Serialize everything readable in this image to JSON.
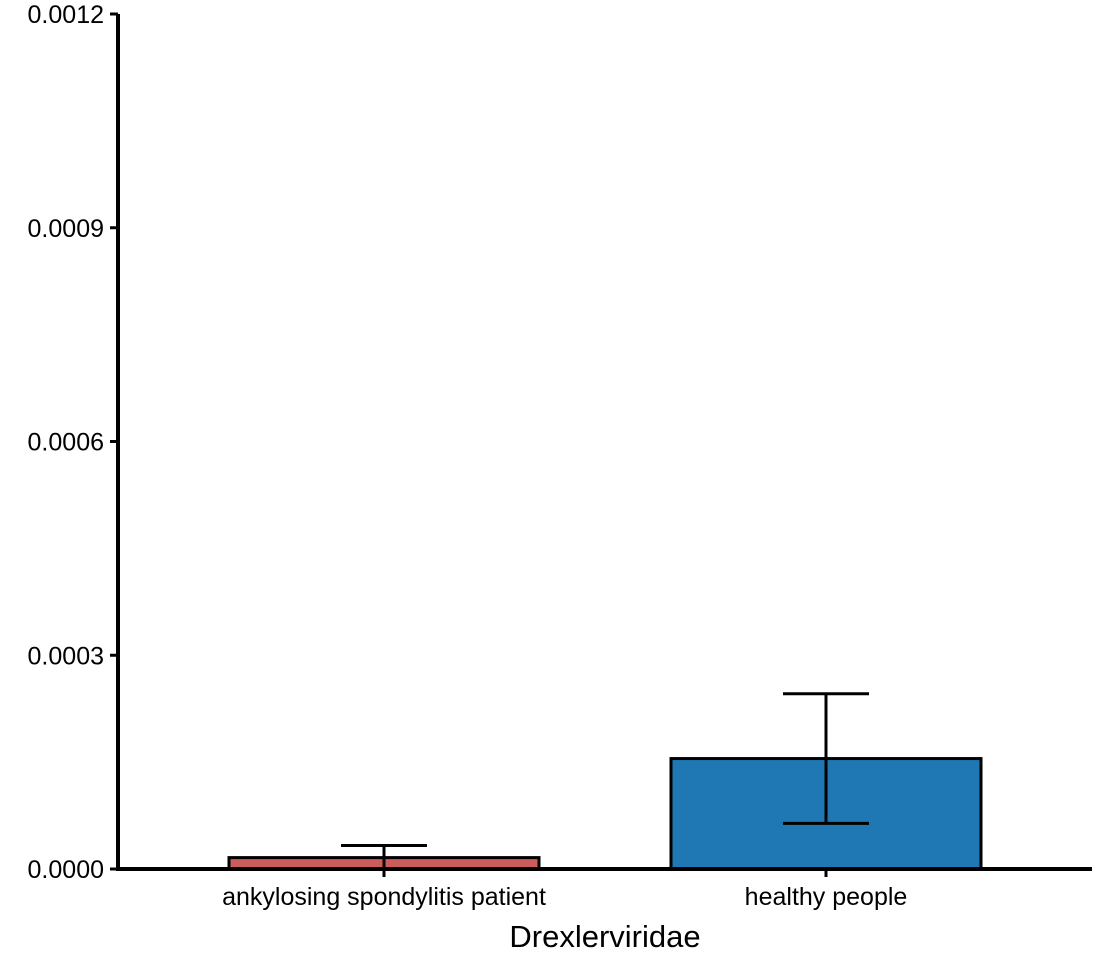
{
  "chart_data": {
    "type": "bar",
    "title": "",
    "xlabel": "Drexlerviridae",
    "ylabel": "",
    "categories": [
      "ankylosing spondylitis patient",
      "healthy people"
    ],
    "values": [
      1.6e-05,
      0.000155
    ],
    "error_low": [
      0.0,
      6.4e-05
    ],
    "error_high": [
      3.3e-05,
      0.000246
    ],
    "bar_colors": [
      "#CD5C5C",
      "#1F77B4"
    ],
    "ylim": [
      0,
      0.0012
    ],
    "yticks": [
      "0.0000",
      "0.0003",
      "0.0006",
      "0.0009",
      "0.0012"
    ],
    "ytick_values": [
      0,
      0.0003,
      0.0006,
      0.0009,
      0.0012
    ],
    "grid": false,
    "legend": "none"
  }
}
